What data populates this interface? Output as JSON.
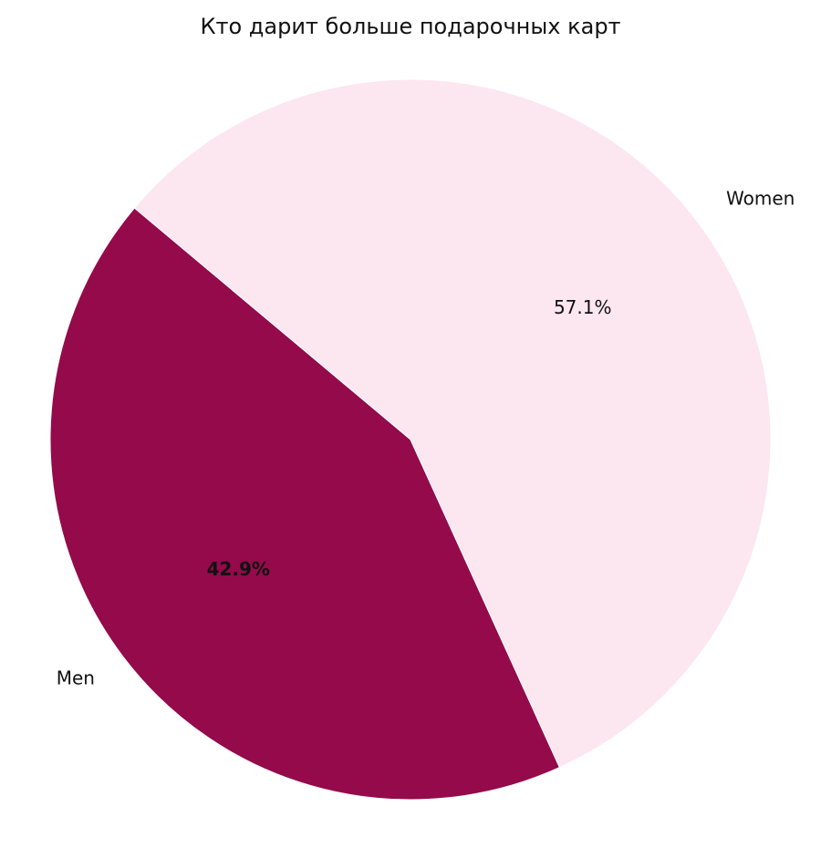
{
  "chart_data": {
    "type": "pie",
    "title": "Кто дарит больше подарочных карт",
    "categories": [
      "Men",
      "Women"
    ],
    "values": [
      42.9,
      57.1
    ],
    "value_labels": [
      "42.9%",
      "57.1%"
    ],
    "colors": [
      "#940a4a",
      "#fce6f0"
    ],
    "startangle": 140
  }
}
